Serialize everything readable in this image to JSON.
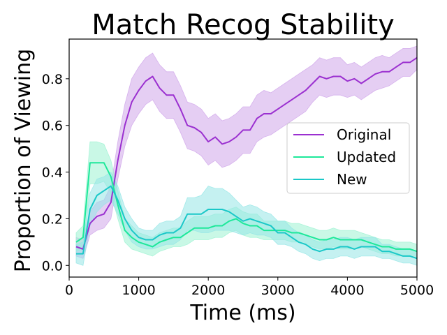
{
  "chart_data": {
    "type": "line",
    "title": "Match Recog Stability",
    "xlabel": "Time (ms)",
    "ylabel": "Proportion of Viewing",
    "xlim": [
      0,
      5000
    ],
    "ylim": [
      -0.05,
      0.97
    ],
    "xticks": [
      0,
      1000,
      2000,
      3000,
      4000,
      5000
    ],
    "yticks": [
      0.0,
      0.2,
      0.4,
      0.6,
      0.8
    ],
    "ytick_labels": [
      "0.0",
      "0.2",
      "0.4",
      "0.6",
      "0.8"
    ],
    "grid": false,
    "legend_position": "center-right",
    "x": [
      100,
      200,
      300,
      400,
      500,
      600,
      700,
      800,
      900,
      1000,
      1100,
      1200,
      1300,
      1400,
      1500,
      1600,
      1700,
      1800,
      1900,
      2000,
      2100,
      2200,
      2300,
      2400,
      2500,
      2600,
      2700,
      2800,
      2900,
      3000,
      3100,
      3200,
      3300,
      3400,
      3500,
      3600,
      3700,
      3800,
      3900,
      4000,
      4100,
      4200,
      4300,
      4400,
      4500,
      4600,
      4700,
      4800,
      4900,
      5000
    ],
    "series": [
      {
        "name": "Original",
        "color": "#9b30d0",
        "band_color": "#cfa5ea",
        "values": [
          0.08,
          0.07,
          0.18,
          0.21,
          0.22,
          0.27,
          0.45,
          0.6,
          0.7,
          0.75,
          0.79,
          0.81,
          0.76,
          0.73,
          0.73,
          0.67,
          0.6,
          0.59,
          0.57,
          0.53,
          0.55,
          0.52,
          0.53,
          0.55,
          0.58,
          0.58,
          0.63,
          0.65,
          0.65,
          0.67,
          0.69,
          0.71,
          0.73,
          0.75,
          0.78,
          0.81,
          0.8,
          0.81,
          0.81,
          0.79,
          0.8,
          0.78,
          0.8,
          0.82,
          0.83,
          0.83,
          0.85,
          0.87,
          0.87,
          0.89
        ],
        "spread": [
          0.04,
          0.04,
          0.05,
          0.06,
          0.06,
          0.07,
          0.08,
          0.09,
          0.1,
          0.1,
          0.1,
          0.1,
          0.1,
          0.1,
          0.1,
          0.1,
          0.1,
          0.1,
          0.1,
          0.1,
          0.1,
          0.1,
          0.1,
          0.1,
          0.1,
          0.1,
          0.1,
          0.1,
          0.09,
          0.09,
          0.09,
          0.09,
          0.09,
          0.09,
          0.08,
          0.08,
          0.08,
          0.08,
          0.08,
          0.07,
          0.07,
          0.07,
          0.07,
          0.07,
          0.07,
          0.06,
          0.06,
          0.06,
          0.06,
          0.05
        ]
      },
      {
        "name": "Updated",
        "color": "#1de89a",
        "band_color": "#9cf3d2",
        "values": [
          0.1,
          0.12,
          0.44,
          0.44,
          0.44,
          0.38,
          0.26,
          0.15,
          0.12,
          0.1,
          0.09,
          0.08,
          0.1,
          0.11,
          0.12,
          0.12,
          0.14,
          0.16,
          0.16,
          0.16,
          0.17,
          0.17,
          0.19,
          0.2,
          0.18,
          0.17,
          0.17,
          0.15,
          0.15,
          0.15,
          0.15,
          0.14,
          0.14,
          0.13,
          0.12,
          0.11,
          0.11,
          0.12,
          0.11,
          0.11,
          0.11,
          0.11,
          0.1,
          0.09,
          0.08,
          0.08,
          0.07,
          0.07,
          0.07,
          0.06
        ],
        "spread": [
          0.04,
          0.05,
          0.09,
          0.09,
          0.08,
          0.07,
          0.06,
          0.05,
          0.05,
          0.04,
          0.04,
          0.04,
          0.04,
          0.04,
          0.04,
          0.04,
          0.05,
          0.05,
          0.05,
          0.05,
          0.05,
          0.05,
          0.05,
          0.05,
          0.05,
          0.05,
          0.05,
          0.04,
          0.04,
          0.04,
          0.04,
          0.04,
          0.04,
          0.04,
          0.04,
          0.04,
          0.04,
          0.04,
          0.04,
          0.04,
          0.04,
          0.03,
          0.03,
          0.03,
          0.03,
          0.03,
          0.03,
          0.03,
          0.03,
          0.03
        ]
      },
      {
        "name": "New",
        "color": "#1ac8c8",
        "band_color": "#95e6e6",
        "values": [
          0.05,
          0.05,
          0.24,
          0.3,
          0.32,
          0.34,
          0.28,
          0.2,
          0.15,
          0.12,
          0.11,
          0.11,
          0.13,
          0.14,
          0.14,
          0.16,
          0.22,
          0.22,
          0.22,
          0.24,
          0.24,
          0.24,
          0.23,
          0.21,
          0.19,
          0.2,
          0.19,
          0.18,
          0.17,
          0.14,
          0.14,
          0.12,
          0.1,
          0.09,
          0.07,
          0.06,
          0.07,
          0.07,
          0.08,
          0.08,
          0.07,
          0.08,
          0.08,
          0.08,
          0.06,
          0.06,
          0.05,
          0.04,
          0.04,
          0.03
        ],
        "spread": [
          0.04,
          0.05,
          0.07,
          0.07,
          0.06,
          0.06,
          0.06,
          0.05,
          0.05,
          0.04,
          0.04,
          0.04,
          0.05,
          0.05,
          0.05,
          0.05,
          0.07,
          0.07,
          0.08,
          0.1,
          0.09,
          0.09,
          0.08,
          0.07,
          0.06,
          0.06,
          0.06,
          0.05,
          0.05,
          0.05,
          0.05,
          0.04,
          0.04,
          0.04,
          0.04,
          0.04,
          0.04,
          0.04,
          0.04,
          0.04,
          0.04,
          0.04,
          0.04,
          0.04,
          0.03,
          0.03,
          0.03,
          0.03,
          0.03,
          0.03
        ]
      }
    ]
  }
}
